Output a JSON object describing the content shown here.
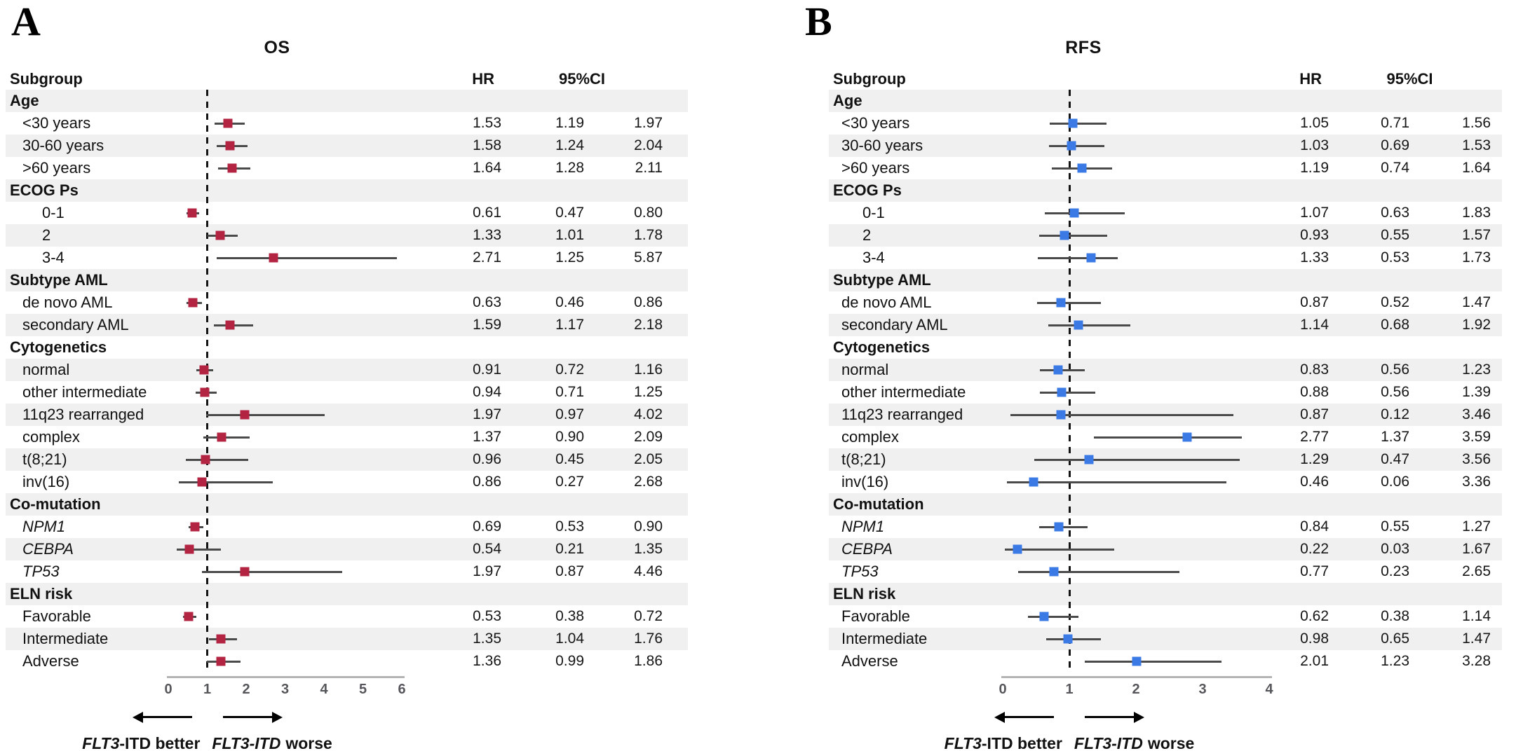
{
  "chart_data": [
    {
      "type": "forest",
      "panel_letter": "A",
      "title": "OS",
      "subgroup_header": "Subgroup",
      "hr_header": "HR",
      "ci_header": "95%CI",
      "xlim": [
        0,
        6
      ],
      "xticks": [
        0,
        1,
        2,
        3,
        4,
        5,
        6
      ],
      "ref_line": 1,
      "marker_color": "#b22441",
      "ci_color": "#4a4a4a",
      "direction": {
        "left_gene": "FLT3",
        "left_rest": "-ITD better",
        "right_gene": "FLT3-ITD",
        "right_rest": "worse"
      },
      "rows": [
        {
          "kind": "section",
          "label": "Age"
        },
        {
          "kind": "data",
          "indent": 1,
          "label": "<30 years",
          "hr": "1.53",
          "lo": "1.19",
          "hi": "1.97"
        },
        {
          "kind": "data",
          "indent": 1,
          "label": "30-60 years",
          "hr": "1.58",
          "lo": "1.24",
          "hi": "2.04"
        },
        {
          "kind": "data",
          "indent": 1,
          "label": ">60 years",
          "hr": "1.64",
          "lo": "1.28",
          "hi": "2.11"
        },
        {
          "kind": "section",
          "label": "ECOG Ps"
        },
        {
          "kind": "data",
          "indent": 2,
          "label": "0-1",
          "hr": "0.61",
          "lo": "0.47",
          "hi": "0.80"
        },
        {
          "kind": "data",
          "indent": 2,
          "label": "2",
          "hr": "1.33",
          "lo": "1.01",
          "hi": "1.78"
        },
        {
          "kind": "data",
          "indent": 2,
          "label": "3-4",
          "hr": "2.71",
          "lo": "1.25",
          "hi": "5.87"
        },
        {
          "kind": "section",
          "label": "Subtype AML"
        },
        {
          "kind": "data",
          "indent": 1,
          "label": "de novo AML",
          "hr": "0.63",
          "lo": "0.46",
          "hi": "0.86"
        },
        {
          "kind": "data",
          "indent": 1,
          "label": "secondary AML",
          "hr": "1.59",
          "lo": "1.17",
          "hi": "2.18"
        },
        {
          "kind": "section",
          "label": "Cytogenetics"
        },
        {
          "kind": "data",
          "indent": 1,
          "label": "normal",
          "hr": "0.91",
          "lo": "0.72",
          "hi": "1.16"
        },
        {
          "kind": "data",
          "indent": 1,
          "label": "other intermediate",
          "hr": "0.94",
          "lo": "0.71",
          "hi": "1.25"
        },
        {
          "kind": "data",
          "indent": 1,
          "label": "11q23 rearranged",
          "hr": "1.97",
          "lo": "0.97",
          "hi": "4.02"
        },
        {
          "kind": "data",
          "indent": 1,
          "label": "complex",
          "hr": "1.37",
          "lo": "0.90",
          "hi": "2.09"
        },
        {
          "kind": "data",
          "indent": 1,
          "label": "t(8;21)",
          "hr": "0.96",
          "lo": "0.45",
          "hi": "2.05"
        },
        {
          "kind": "data",
          "indent": 1,
          "label": "inv(16)",
          "hr": "0.86",
          "lo": "0.27",
          "hi": "2.68"
        },
        {
          "kind": "section",
          "label": "Co-mutation"
        },
        {
          "kind": "data",
          "indent": 1,
          "italic": true,
          "label": "NPM1",
          "hr": "0.69",
          "lo": "0.53",
          "hi": "0.90"
        },
        {
          "kind": "data",
          "indent": 1,
          "italic": true,
          "label": "CEBPA",
          "hr": "0.54",
          "lo": "0.21",
          "hi": "1.35"
        },
        {
          "kind": "data",
          "indent": 1,
          "italic": true,
          "label": "TP53",
          "hr": "1.97",
          "lo": "0.87",
          "hi": "4.46"
        },
        {
          "kind": "section",
          "label": "ELN risk"
        },
        {
          "kind": "data",
          "indent": 1,
          "label": "Favorable",
          "hr": "0.53",
          "lo": "0.38",
          "hi": "0.72"
        },
        {
          "kind": "data",
          "indent": 1,
          "label": "Intermediate",
          "hr": "1.35",
          "lo": "1.04",
          "hi": "1.76"
        },
        {
          "kind": "data",
          "indent": 1,
          "label": "Adverse",
          "hr": "1.36",
          "lo": "0.99",
          "hi": "1.86"
        }
      ]
    },
    {
      "type": "forest",
      "panel_letter": "B",
      "title": "RFS",
      "subgroup_header": "Subgroup",
      "hr_header": "HR",
      "ci_header": "95%CI",
      "xlim": [
        0,
        4
      ],
      "xticks": [
        0,
        1,
        2,
        3,
        4
      ],
      "ref_line": 1,
      "marker_color": "#3b7ae4",
      "ci_color": "#4a4a4a",
      "direction": {
        "left_gene": "FLT3",
        "left_rest": "-ITD better",
        "right_gene": "FLT3-ITD",
        "right_rest": "worse"
      },
      "rows": [
        {
          "kind": "section",
          "label": "Age"
        },
        {
          "kind": "data",
          "indent": 1,
          "label": "<30 years",
          "hr": "1.05",
          "lo": "0.71",
          "hi": "1.56"
        },
        {
          "kind": "data",
          "indent": 1,
          "label": "30-60 years",
          "hr": "1.03",
          "lo": "0.69",
          "hi": "1.53"
        },
        {
          "kind": "data",
          "indent": 1,
          "label": ">60 years",
          "hr": "1.19",
          "lo": "0.74",
          "hi": "1.64"
        },
        {
          "kind": "section",
          "label": "ECOG Ps"
        },
        {
          "kind": "data",
          "indent": 2,
          "label": "0-1",
          "hr": "1.07",
          "lo": "0.63",
          "hi": "1.83"
        },
        {
          "kind": "data",
          "indent": 2,
          "label": "2",
          "hr": "0.93",
          "lo": "0.55",
          "hi": "1.57"
        },
        {
          "kind": "data",
          "indent": 2,
          "label": "3-4",
          "hr": "1.33",
          "lo": "0.53",
          "hi": "1.73"
        },
        {
          "kind": "section",
          "label": "Subtype AML"
        },
        {
          "kind": "data",
          "indent": 1,
          "label": "de novo AML",
          "hr": "0.87",
          "lo": "0.52",
          "hi": "1.47"
        },
        {
          "kind": "data",
          "indent": 1,
          "label": "secondary AML",
          "hr": "1.14",
          "lo": "0.68",
          "hi": "1.92"
        },
        {
          "kind": "section",
          "label": "Cytogenetics"
        },
        {
          "kind": "data",
          "indent": 1,
          "label": "normal",
          "hr": "0.83",
          "lo": "0.56",
          "hi": "1.23"
        },
        {
          "kind": "data",
          "indent": 1,
          "label": "other intermediate",
          "hr": "0.88",
          "lo": "0.56",
          "hi": "1.39"
        },
        {
          "kind": "data",
          "indent": 1,
          "label": "11q23 rearranged",
          "hr": "0.87",
          "lo": "0.12",
          "hi": "3.46"
        },
        {
          "kind": "data",
          "indent": 1,
          "label": "complex",
          "hr": "2.77",
          "lo": "1.37",
          "hi": "3.59"
        },
        {
          "kind": "data",
          "indent": 1,
          "label": "t(8;21)",
          "hr": "1.29",
          "lo": "0.47",
          "hi": "3.56"
        },
        {
          "kind": "data",
          "indent": 1,
          "label": "inv(16)",
          "hr": "0.46",
          "lo": "0.06",
          "hi": "3.36"
        },
        {
          "kind": "section",
          "label": "Co-mutation"
        },
        {
          "kind": "data",
          "indent": 1,
          "italic": true,
          "label": "NPM1",
          "hr": "0.84",
          "lo": "0.55",
          "hi": "1.27"
        },
        {
          "kind": "data",
          "indent": 1,
          "italic": true,
          "label": "CEBPA",
          "hr": "0.22",
          "lo": "0.03",
          "hi": "1.67"
        },
        {
          "kind": "data",
          "indent": 1,
          "italic": true,
          "label": "TP53",
          "hr": "0.77",
          "lo": "0.23",
          "hi": "2.65"
        },
        {
          "kind": "section",
          "label": "ELN risk"
        },
        {
          "kind": "data",
          "indent": 1,
          "label": "Favorable",
          "hr": "0.62",
          "lo": "0.38",
          "hi": "1.14"
        },
        {
          "kind": "data",
          "indent": 1,
          "label": "Intermediate",
          "hr": "0.98",
          "lo": "0.65",
          "hi": "1.47"
        },
        {
          "kind": "data",
          "indent": 1,
          "label": "Adverse",
          "hr": "2.01",
          "lo": "1.23",
          "hi": "3.28"
        }
      ]
    }
  ]
}
